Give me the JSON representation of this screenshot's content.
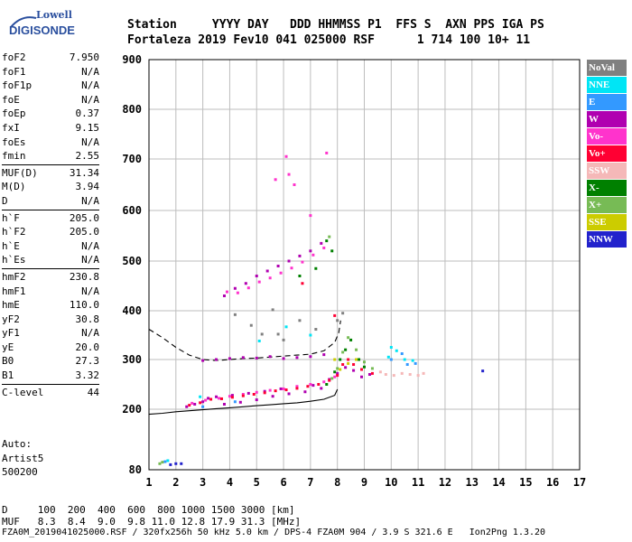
{
  "logo": {
    "brand": "Lowell",
    "product": "DIGISONDE"
  },
  "header": {
    "line1": "Station     YYYY DAY   DDD HHMMSS P1  FFS S  AXN PPS IGA PS",
    "line2": "Fortaleza 2019 Fev10 041 025000 RSF      1 714 100 10+ 11"
  },
  "params": [
    {
      "label": "foF2",
      "value": "7.950"
    },
    {
      "label": "foF1",
      "value": "N/A"
    },
    {
      "label": "foF1p",
      "value": "N/A"
    },
    {
      "label": "foE",
      "value": "N/A"
    },
    {
      "label": "foEp",
      "value": "0.37"
    },
    {
      "label": "fxI",
      "value": "9.15"
    },
    {
      "label": "foEs",
      "value": "N/A"
    },
    {
      "label": "fmin",
      "value": "2.55"
    },
    {
      "sep": true
    },
    {
      "label": "MUF(D)",
      "value": "31.34"
    },
    {
      "label": "M(D)",
      "value": "3.94"
    },
    {
      "label": "D",
      "value": "N/A"
    },
    {
      "sep": true
    },
    {
      "label": "h`F",
      "value": "205.0"
    },
    {
      "label": "h`F2",
      "value": "205.0"
    },
    {
      "label": "h`E",
      "value": "N/A"
    },
    {
      "label": "h`Es",
      "value": "N/A"
    },
    {
      "sep": true
    },
    {
      "label": "hmF2",
      "value": "230.8"
    },
    {
      "label": "hmF1",
      "value": "N/A"
    },
    {
      "label": "hmE",
      "value": "110.0"
    },
    {
      "label": "yF2",
      "value": "30.8"
    },
    {
      "label": "yF1",
      "value": "N/A"
    },
    {
      "label": "yE",
      "value": "20.0"
    },
    {
      "label": "B0",
      "value": "27.3"
    },
    {
      "label": "B1",
      "value": "3.32"
    },
    {
      "sep": true
    },
    {
      "label": "C-level",
      "value": "44"
    }
  ],
  "autoscale": {
    "label": "Auto:",
    "method": "Artist5",
    "version": "500200"
  },
  "legend": [
    {
      "label": "NoVal",
      "color": "#808080"
    },
    {
      "label": "NNE",
      "color": "#00e5f5"
    },
    {
      "label": "E",
      "color": "#3399ff"
    },
    {
      "label": "W",
      "color": "#b000b0"
    },
    {
      "label": "Vo-",
      "color": "#ff33cc"
    },
    {
      "label": "Vo+",
      "color": "#ff0033"
    },
    {
      "label": "SSW",
      "color": "#f5b8b8"
    },
    {
      "label": "X-",
      "color": "#008000"
    },
    {
      "label": "X+",
      "color": "#77bb55"
    },
    {
      "label": "SSE",
      "color": "#cccc00"
    },
    {
      "label": "NNW",
      "color": "#2222cc"
    }
  ],
  "bottom": {
    "d_line": "D     100  200  400  600  800 1000 1500 3000 [km]",
    "muf_line": "MUF   8.3  8.4  9.0  9.8 11.0 12.8 17.9 31.3 [MHz]",
    "file_line": "FZA0M_2019041025000.RSF / 320fx256h 50 kHz 5.0 km / DPS-4 FZA0M 904 / 3.9 S 321.6 E   Ion2Png 1.3.20"
  },
  "chart_data": {
    "type": "scatter",
    "title": "",
    "xlabel": "",
    "ylabel": "",
    "xlim": [
      1,
      17
    ],
    "ylim": [
      80,
      900
    ],
    "x_ticks": [
      1,
      2,
      3,
      4,
      5,
      6,
      7,
      8,
      9,
      10,
      11,
      12,
      13,
      14,
      15,
      16,
      17
    ],
    "y_ticks": [
      80,
      200,
      300,
      400,
      500,
      600,
      700,
      800,
      900
    ],
    "grid": true,
    "series": [
      {
        "name": "W",
        "color": "#b000b0",
        "points": [
          [
            2.4,
            205
          ],
          [
            2.7,
            210
          ],
          [
            3.0,
            215
          ],
          [
            3.2,
            222
          ],
          [
            3.5,
            225
          ],
          [
            3.8,
            210
          ],
          [
            4.1,
            228
          ],
          [
            4.4,
            214
          ],
          [
            4.7,
            232
          ],
          [
            5.0,
            219
          ],
          [
            5.3,
            236
          ],
          [
            5.6,
            226
          ],
          [
            5.9,
            241
          ],
          [
            6.2,
            231
          ],
          [
            6.5,
            244
          ],
          [
            6.8,
            235
          ],
          [
            7.1,
            248
          ],
          [
            7.4,
            242
          ],
          [
            7.7,
            260
          ],
          [
            8.0,
            272
          ],
          [
            8.3,
            284
          ],
          [
            8.6,
            278
          ],
          [
            8.9,
            265
          ],
          [
            9.2,
            270
          ],
          [
            3.0,
            298
          ],
          [
            3.5,
            300
          ],
          [
            4.0,
            302
          ],
          [
            4.5,
            304
          ],
          [
            5.0,
            303
          ],
          [
            5.5,
            306
          ],
          [
            6.0,
            302
          ],
          [
            6.5,
            304
          ],
          [
            7.0,
            306
          ],
          [
            7.5,
            310
          ],
          [
            3.8,
            430
          ],
          [
            4.2,
            445
          ],
          [
            4.6,
            455
          ],
          [
            5.0,
            470
          ],
          [
            5.4,
            480
          ],
          [
            5.8,
            490
          ],
          [
            6.2,
            500
          ],
          [
            6.6,
            510
          ],
          [
            7.0,
            520
          ],
          [
            7.4,
            535
          ]
        ]
      },
      {
        "name": "Vo-",
        "color": "#ff33cc",
        "points": [
          [
            2.6,
            212
          ],
          [
            3.1,
            218
          ],
          [
            3.6,
            222
          ],
          [
            4.0,
            226
          ],
          [
            4.5,
            230
          ],
          [
            5.0,
            234
          ],
          [
            5.5,
            238
          ],
          [
            6.0,
            241
          ],
          [
            6.5,
            246
          ],
          [
            7.0,
            250
          ],
          [
            7.5,
            255
          ],
          [
            7.9,
            265
          ],
          [
            3.9,
            438
          ],
          [
            4.3,
            436
          ],
          [
            4.7,
            446
          ],
          [
            5.1,
            458
          ],
          [
            5.5,
            466
          ],
          [
            5.9,
            476
          ],
          [
            6.3,
            486
          ],
          [
            6.7,
            498
          ],
          [
            7.1,
            512
          ],
          [
            7.5,
            526
          ],
          [
            5.7,
            660
          ],
          [
            6.2,
            670
          ],
          [
            6.4,
            650
          ],
          [
            6.1,
            705
          ],
          [
            7.0,
            590
          ],
          [
            7.6,
            712
          ]
        ]
      },
      {
        "name": "Vo+",
        "color": "#ff0033",
        "points": [
          [
            2.5,
            208
          ],
          [
            2.9,
            213
          ],
          [
            3.3,
            220
          ],
          [
            3.7,
            221
          ],
          [
            4.1,
            224
          ],
          [
            4.5,
            227
          ],
          [
            4.9,
            230
          ],
          [
            5.3,
            233
          ],
          [
            5.7,
            237
          ],
          [
            6.1,
            239
          ],
          [
            6.5,
            242
          ],
          [
            6.9,
            246
          ],
          [
            7.3,
            250
          ],
          [
            7.7,
            258
          ],
          [
            8.0,
            268
          ],
          [
            8.2,
            290
          ],
          [
            8.4,
            300
          ],
          [
            8.6,
            290
          ],
          [
            8.9,
            280
          ],
          [
            9.3,
            272
          ],
          [
            7.9,
            390
          ],
          [
            6.7,
            455
          ]
        ]
      },
      {
        "name": "X-",
        "color": "#008000",
        "points": [
          [
            7.6,
            250
          ],
          [
            7.9,
            275
          ],
          [
            8.1,
            300
          ],
          [
            8.3,
            320
          ],
          [
            8.5,
            340
          ],
          [
            8.8,
            300
          ],
          [
            9.0,
            285
          ],
          [
            6.6,
            470
          ],
          [
            7.2,
            485
          ],
          [
            7.6,
            540
          ],
          [
            7.8,
            520
          ]
        ]
      },
      {
        "name": "X+",
        "color": "#77bb55",
        "points": [
          [
            7.8,
            262
          ],
          [
            8.0,
            282
          ],
          [
            8.2,
            315
          ],
          [
            8.4,
            345
          ],
          [
            8.7,
            320
          ],
          [
            9.0,
            295
          ],
          [
            9.3,
            282
          ],
          [
            7.7,
            548
          ],
          [
            1.4,
            92
          ],
          [
            1.5,
            95
          ]
        ]
      },
      {
        "name": "SSW",
        "color": "#f5b8b8",
        "points": [
          [
            9.8,
            270
          ],
          [
            10.1,
            268
          ],
          [
            10.4,
            272
          ],
          [
            10.7,
            270
          ],
          [
            11.0,
            268
          ],
          [
            11.2,
            272
          ],
          [
            9.6,
            275
          ]
        ]
      },
      {
        "name": "NNE",
        "color": "#00e5f5",
        "points": [
          [
            9.9,
            305
          ],
          [
            10.2,
            318
          ],
          [
            10.5,
            300
          ],
          [
            10.8,
            298
          ],
          [
            10.0,
            325
          ],
          [
            2.9,
            225
          ],
          [
            5.1,
            338
          ],
          [
            6.1,
            367
          ],
          [
            7.0,
            350
          ],
          [
            1.7,
            98
          ]
        ]
      },
      {
        "name": "E",
        "color": "#3399ff",
        "points": [
          [
            10.0,
            300
          ],
          [
            10.4,
            312
          ],
          [
            10.6,
            290
          ],
          [
            10.9,
            292
          ],
          [
            3.0,
            205
          ],
          [
            4.2,
            215
          ],
          [
            1.6,
            96
          ]
        ]
      },
      {
        "name": "SSE",
        "color": "#cccc00",
        "points": [
          [
            8.1,
            280
          ],
          [
            8.4,
            292
          ],
          [
            8.7,
            300
          ],
          [
            7.9,
            300
          ]
        ]
      },
      {
        "name": "NNW",
        "color": "#2222cc",
        "points": [
          [
            13.4,
            277
          ],
          [
            2.0,
            92
          ],
          [
            2.2,
            92
          ],
          [
            1.8,
            90
          ]
        ]
      },
      {
        "name": "NoVal",
        "color": "#808080",
        "points": [
          [
            4.2,
            392
          ],
          [
            5.6,
            402
          ],
          [
            6.6,
            380
          ],
          [
            7.2,
            362
          ],
          [
            5.8,
            352
          ],
          [
            4.8,
            370
          ],
          [
            8.0,
            380
          ],
          [
            8.2,
            395
          ],
          [
            6.0,
            340
          ],
          [
            5.2,
            352
          ]
        ]
      }
    ],
    "curves": [
      {
        "name": "dashed",
        "style": "dashed",
        "points": [
          [
            1,
            362
          ],
          [
            1.5,
            345
          ],
          [
            2.0,
            325
          ],
          [
            2.5,
            309
          ],
          [
            3.0,
            300
          ],
          [
            3.5,
            298
          ],
          [
            4.0,
            300
          ],
          [
            4.5,
            302
          ],
          [
            5.0,
            303
          ],
          [
            5.5,
            305
          ],
          [
            6.0,
            307
          ],
          [
            6.5,
            309
          ],
          [
            7.0,
            311
          ],
          [
            7.5,
            318
          ],
          [
            7.9,
            335
          ],
          [
            8.05,
            355
          ],
          [
            8.12,
            380
          ]
        ]
      },
      {
        "name": "solid",
        "style": "solid",
        "points": [
          [
            1,
            190
          ],
          [
            1.5,
            192
          ],
          [
            2.0,
            195
          ],
          [
            2.5,
            197
          ],
          [
            3.0,
            199
          ],
          [
            3.5,
            201
          ],
          [
            4.0,
            203
          ],
          [
            4.5,
            205
          ],
          [
            5.0,
            207
          ],
          [
            5.5,
            209
          ],
          [
            6.0,
            211
          ],
          [
            6.5,
            213
          ],
          [
            7.0,
            216
          ],
          [
            7.5,
            220
          ],
          [
            7.9,
            228
          ],
          [
            8.0,
            240
          ]
        ]
      }
    ]
  }
}
